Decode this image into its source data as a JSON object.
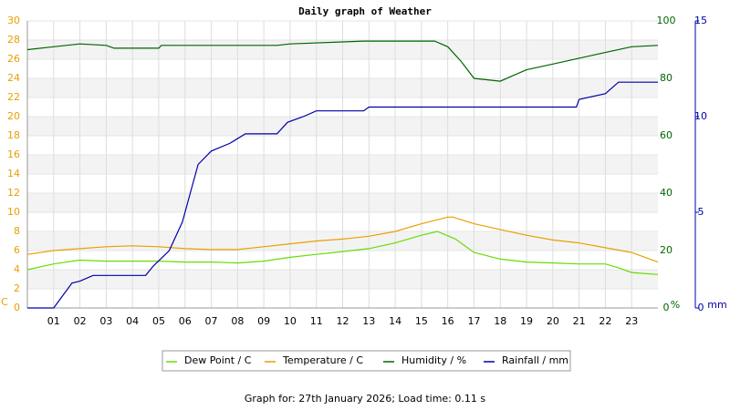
{
  "chart_data": {
    "type": "line",
    "title": "Daily graph of Weather",
    "footer": "Graph for: 27th January 2026; Load time: 0.11 s",
    "ylabel": "C",
    "y2label": "%",
    "y3label": "mm",
    "xlim": [
      0,
      24
    ],
    "xticks": [
      {
        "value": 1,
        "label": "01"
      },
      {
        "value": 2,
        "label": "02"
      },
      {
        "value": 3,
        "label": "03"
      },
      {
        "value": 4,
        "label": "04"
      },
      {
        "value": 5,
        "label": "05"
      },
      {
        "value": 6,
        "label": "06"
      },
      {
        "value": 7,
        "label": "07"
      },
      {
        "value": 8,
        "label": "08"
      },
      {
        "value": 9,
        "label": "09"
      },
      10,
      11,
      12,
      13,
      14,
      15,
      16,
      17,
      18,
      19,
      20,
      21,
      22,
      23
    ],
    "ylim": [
      0,
      30
    ],
    "yticks": [
      0,
      2,
      4,
      6,
      8,
      10,
      12,
      14,
      16,
      18,
      20,
      22,
      24,
      26,
      28,
      30
    ],
    "ycolor": "#e8a000",
    "y2lim": [
      0,
      100
    ],
    "y2ticks": [
      0,
      20,
      40,
      60,
      80,
      100
    ],
    "y2color": "#006600",
    "y3lim": [
      0,
      15
    ],
    "y3ticks": [
      0,
      5,
      10,
      15
    ],
    "y3color": "#0000aa",
    "grid": true,
    "series": [
      {
        "name": "Dew Point / C",
        "color": "#66dd00",
        "x": [
          0,
          1,
          2,
          3,
          4,
          5,
          6,
          7,
          8,
          9,
          10,
          11,
          12,
          13,
          14,
          15,
          15.6,
          16.3,
          17,
          18,
          19,
          20,
          21,
          22,
          22.5,
          23,
          24
        ],
        "values": [
          4.0,
          4.6,
          5.0,
          4.9,
          4.9,
          4.9,
          4.8,
          4.8,
          4.7,
          4.9,
          5.3,
          5.6,
          5.9,
          6.2,
          6.8,
          7.6,
          8.0,
          7.2,
          5.8,
          5.1,
          4.8,
          4.7,
          4.6,
          4.6,
          4.2,
          3.7,
          3.5
        ]
      },
      {
        "name": "Temperature / C",
        "color": "#e8a000",
        "x": [
          0,
          1,
          2,
          3,
          4,
          5,
          6,
          7,
          8,
          9,
          10,
          11,
          12,
          13,
          14,
          15,
          16,
          16.2,
          17,
          18,
          19,
          20,
          21,
          22,
          23,
          24
        ],
        "values": [
          5.6,
          6.0,
          6.2,
          6.4,
          6.5,
          6.4,
          6.2,
          6.1,
          6.1,
          6.4,
          6.7,
          7.0,
          7.2,
          7.5,
          8.0,
          8.8,
          9.5,
          9.5,
          8.8,
          8.2,
          7.6,
          7.1,
          6.8,
          6.3,
          5.8,
          4.8
        ]
      },
      {
        "name": "Humidity / %",
        "color": "#006600",
        "axis": "y2",
        "x": [
          0,
          1,
          2,
          3,
          3.3,
          5,
          5.1,
          9.5,
          10,
          12.8,
          15.5,
          16,
          16.5,
          17,
          18,
          18.5,
          19,
          20,
          21,
          22,
          23,
          24
        ],
        "values": [
          90,
          91,
          92,
          91.5,
          90.5,
          90.5,
          91.5,
          91.5,
          92,
          93,
          93,
          91,
          86,
          80,
          79,
          81,
          83,
          85,
          87,
          89,
          91,
          91.5
        ]
      },
      {
        "name": "Rainfall / mm",
        "color": "#0000aa",
        "axis": "y3",
        "x": [
          0,
          1,
          1.7,
          2,
          2.5,
          4.5,
          4.8,
          5.4,
          5.9,
          6.2,
          6.5,
          7,
          7.7,
          8.3,
          9.5,
          9.9,
          10.5,
          11,
          12.8,
          13,
          20.9,
          21,
          22,
          22.5,
          24
        ],
        "values": [
          0,
          0,
          1.3,
          1.4,
          1.7,
          1.7,
          2.2,
          3.0,
          4.5,
          6.0,
          7.5,
          8.2,
          8.6,
          9.1,
          9.1,
          9.7,
          10.0,
          10.3,
          10.3,
          10.5,
          10.5,
          10.9,
          11.2,
          11.8,
          11.8
        ]
      }
    ]
  }
}
